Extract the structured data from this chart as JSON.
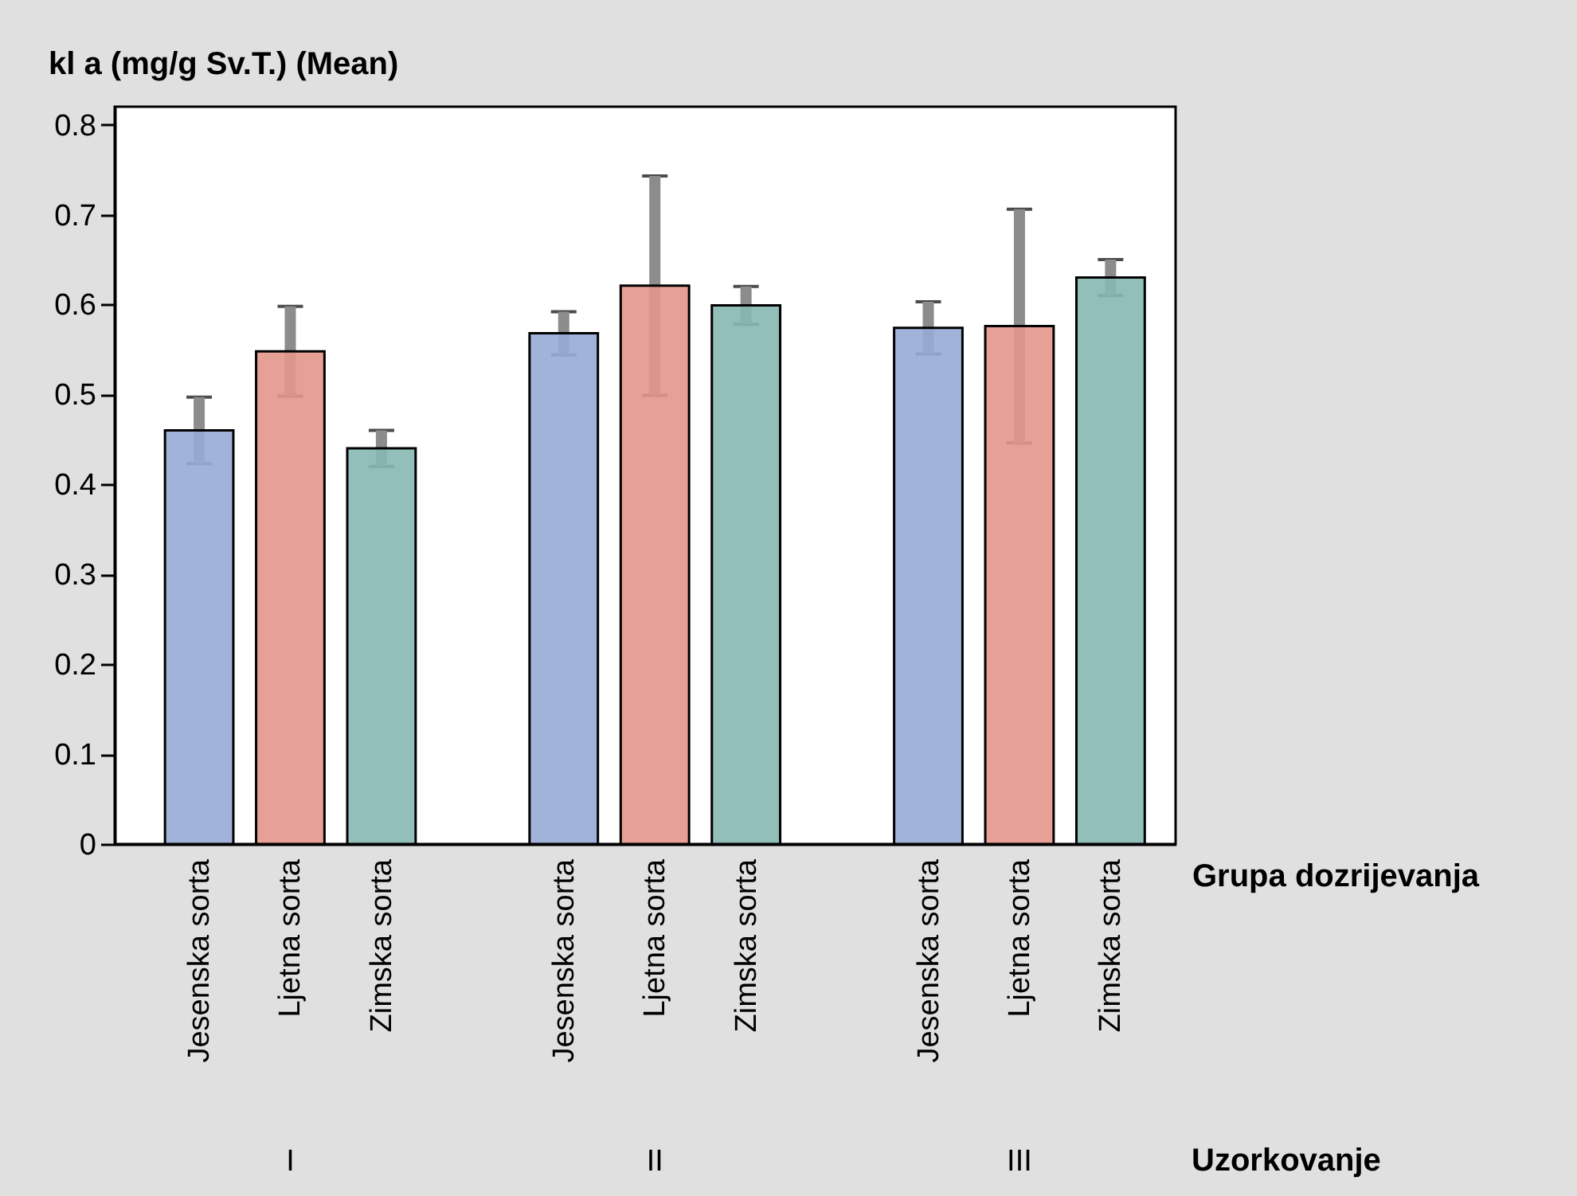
{
  "chart_data": {
    "type": "bar",
    "ylabel": "kl a (mg/g Sv.T.) (Mean)",
    "xlabel": "Grupa dozrijevanja",
    "annotations": [
      "I",
      "II",
      "III",
      "Uzorkovanje"
    ],
    "categories": [
      "Jesenska sorta",
      "Ljetna sorta",
      "Zimska sorta",
      null,
      "Jesenska sorta",
      "Ljetna sorta",
      "Zimska sorta",
      null,
      "Jesenska sorta",
      "Ljetna sorta",
      "Zimska sorta"
    ],
    "values": [
      0.46,
      0.548,
      0.44,
      null,
      0.568,
      0.621,
      0.599,
      null,
      0.574,
      0.576,
      0.63
    ],
    "errors": [
      0.037,
      0.05,
      0.02,
      null,
      0.024,
      0.122,
      0.021,
      null,
      0.029,
      0.13,
      0.02
    ],
    "colors": [
      "#98abd6",
      "#e49689",
      "#86b8b1",
      null,
      "#98abd6",
      "#e49689",
      "#86b8b1",
      null,
      "#98abd6",
      "#e49689",
      "#86b8b1"
    ],
    "ylim": [
      0,
      0.82
    ],
    "yticks": [
      0,
      0.1,
      0.2,
      0.3,
      0.4,
      0.5,
      0.6,
      0.7,
      0.8
    ],
    "grid": false,
    "legend": false
  }
}
